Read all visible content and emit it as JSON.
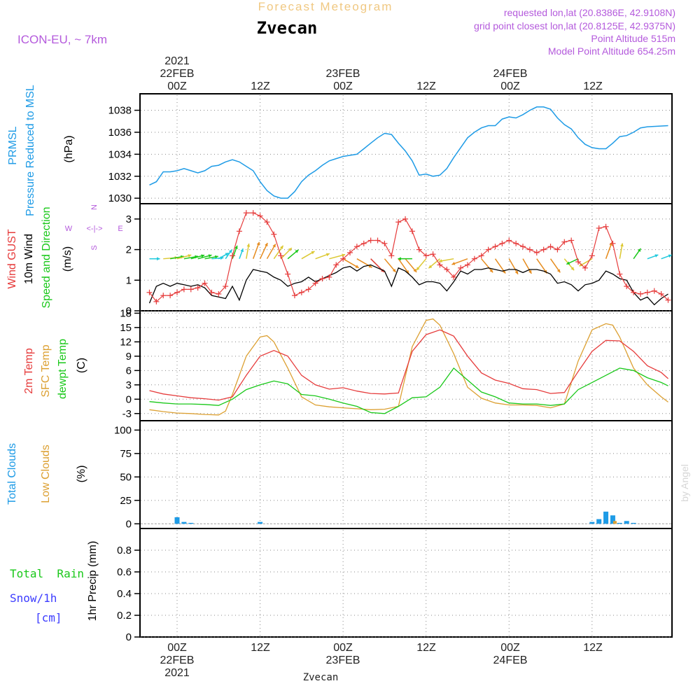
{
  "header": {
    "product": "Forecast Meteogram",
    "station": "Zvecan",
    "model": "ICON-EU, ~ 7km",
    "requested": "requested lon,lat (20.8386E, 42.9108N)",
    "gridpoint": "grid point closest lon,lat (20.8125E, 42.9375N)",
    "point_altitude": "Point Altitude 515m",
    "model_altitude": "Model Point Altitude 654.25m",
    "credit": "by Angel",
    "footer_station": "Zvecan"
  },
  "colors": {
    "pressure": "#1e9be6",
    "gust": "#e63c3c",
    "wind": "#000000",
    "t2m": "#e63c3c",
    "sfc": "#dca032",
    "dewpt": "#19c819",
    "total_clouds": "#1e9be6",
    "low_clouds": "#dca032",
    "rain": "#19c819",
    "snow": "#3c3cff",
    "label_purple": "#b45adc",
    "title_orange": "#f0c882"
  },
  "time_axis": {
    "top_year": "2021",
    "top_dates": [
      "22FEB",
      "23FEB",
      "24FEB"
    ],
    "ticks": [
      "00Z",
      "12Z",
      "00Z",
      "12Z",
      "00Z",
      "12Z"
    ],
    "bottom_dates": [
      "22FEB",
      "23FEB",
      "24FEB"
    ],
    "bottom_year": "2021"
  },
  "panel_labels": {
    "pressure": [
      "PRMSL",
      "Pressure Reduced to MSL"
    ],
    "pressure_unit": "(hPa)",
    "wind_gust": "Wind GUST",
    "wind_10m": "10m Wind",
    "wind_dir": "Speed and Direction",
    "wind_unit": "(m/s)",
    "compass_n": "N",
    "compass_s": "S",
    "compass_e": "E",
    "compass_w": "W",
    "temp_2m": "2m Temp",
    "temp_sfc": "SFC Temp",
    "temp_dew": "dewpt Temp",
    "temp_unit": "(C)",
    "cloud_total": "Total Clouds",
    "cloud_low": "Low Clouds",
    "cloud_unit": "(%)",
    "precip_rain": "Total  Rain",
    "precip_snow": "Snow/1h",
    "precip_snow_unit": "[cm]",
    "precip_label": "1hr Precip (mm)"
  },
  "chart_data": [
    {
      "name": "pressure",
      "type": "line",
      "x_unit": "hours from 22FEB 00Z",
      "ylim": [
        1029.5,
        1039.5
      ],
      "yticks": [
        1030,
        1032,
        1034,
        1036,
        1038
      ],
      "grid": true,
      "series": [
        {
          "name": "PRMSL",
          "x": [
            -4,
            -3,
            -2,
            -1,
            0,
            1,
            2,
            3,
            4,
            5,
            6,
            7,
            8,
            9,
            10,
            11,
            12,
            13,
            14,
            15,
            16,
            17,
            18,
            19,
            20,
            21,
            22,
            23,
            24,
            25,
            26,
            27,
            28,
            29,
            30,
            31,
            32,
            33,
            34,
            35,
            36,
            37,
            38,
            39,
            40,
            41,
            42,
            43,
            44,
            45,
            46,
            47,
            48,
            49,
            50,
            51,
            52,
            53,
            54,
            55,
            56,
            57,
            58,
            59,
            60,
            61,
            62,
            63,
            64,
            65,
            66,
            67,
            68,
            71
          ],
          "y": [
            1031.2,
            1031.5,
            1032.4,
            1032.4,
            1032.5,
            1032.7,
            1032.5,
            1032.3,
            1032.5,
            1032.9,
            1033.0,
            1033.3,
            1033.5,
            1033.3,
            1032.9,
            1032.5,
            1031.5,
            1030.7,
            1030.2,
            1030.0,
            1030.0,
            1030.6,
            1031.5,
            1032.1,
            1032.5,
            1033.0,
            1033.4,
            1033.6,
            1033.8,
            1033.9,
            1034.0,
            1034.5,
            1035.0,
            1035.5,
            1035.9,
            1035.8,
            1035.0,
            1034.3,
            1033.4,
            1032.1,
            1032.2,
            1032.0,
            1032.1,
            1032.7,
            1033.7,
            1034.6,
            1035.5,
            1036.0,
            1036.4,
            1036.6,
            1036.6,
            1037.2,
            1037.4,
            1037.3,
            1037.6,
            1038.0,
            1038.3,
            1038.3,
            1038.1,
            1037.3,
            1036.7,
            1036.3,
            1035.5,
            1034.9,
            1034.6,
            1034.5,
            1034.5,
            1035.0,
            1035.6,
            1035.7,
            1036.0,
            1036.4,
            1036.5,
            1036.6
          ]
        }
      ]
    },
    {
      "name": "wind",
      "type": "line",
      "x_unit": "hours from 22FEB 00Z",
      "ylim": [
        0,
        3.5
      ],
      "yticks": [
        0,
        1,
        2,
        3
      ],
      "grid": true,
      "series": [
        {
          "name": "Wind GUST",
          "x": [
            -4,
            -3,
            -2,
            -1,
            0,
            1,
            2,
            3,
            4,
            5,
            6,
            7,
            8,
            9,
            10,
            11,
            12,
            13,
            14,
            15,
            16,
            17,
            18,
            19,
            20,
            21,
            22,
            23,
            24,
            25,
            26,
            27,
            28,
            29,
            30,
            31,
            32,
            33,
            34,
            35,
            36,
            37,
            38,
            39,
            40,
            41,
            42,
            43,
            44,
            45,
            46,
            47,
            48,
            49,
            50,
            51,
            52,
            53,
            54,
            55,
            56,
            57,
            58,
            59,
            60,
            61,
            62,
            63,
            64,
            65,
            66,
            67,
            68,
            69,
            70,
            71
          ],
          "y": [
            0.6,
            0.3,
            0.5,
            0.5,
            0.6,
            0.7,
            0.7,
            0.75,
            0.9,
            0.6,
            0.55,
            0.8,
            1.8,
            2.6,
            3.2,
            3.2,
            3.1,
            2.9,
            2.5,
            1.8,
            1.2,
            0.5,
            0.6,
            0.7,
            0.9,
            1.05,
            1.1,
            1.5,
            1.7,
            1.9,
            2.1,
            2.2,
            2.3,
            2.3,
            2.2,
            1.8,
            2.9,
            3.0,
            2.6,
            2.0,
            1.8,
            1.85,
            1.5,
            1.35,
            1.1,
            1.4,
            1.5,
            1.7,
            1.8,
            2.0,
            2.1,
            2.2,
            2.3,
            2.2,
            2.1,
            2.0,
            1.9,
            2.0,
            2.1,
            2.0,
            2.25,
            2.3,
            1.6,
            1.4,
            1.8,
            2.7,
            2.75,
            2.2,
            1.2,
            0.8,
            0.6,
            0.55,
            0.6,
            0.65,
            0.55,
            0.35
          ]
        },
        {
          "name": "10m Wind",
          "x": [
            -4,
            -3,
            -2,
            -1,
            0,
            1,
            2,
            3,
            4,
            5,
            6,
            7,
            8,
            9,
            10,
            11,
            12,
            13,
            14,
            15,
            16,
            17,
            18,
            19,
            20,
            21,
            22,
            23,
            24,
            25,
            26,
            27,
            28,
            29,
            30,
            31,
            32,
            33,
            34,
            35,
            36,
            37,
            38,
            39,
            40,
            41,
            42,
            43,
            44,
            45,
            46,
            47,
            48,
            49,
            50,
            51,
            52,
            53,
            54,
            55,
            56,
            57,
            58,
            59,
            60,
            61,
            62,
            63,
            64,
            65,
            66,
            67,
            68,
            69,
            70,
            71
          ],
          "y": [
            0.25,
            0.8,
            0.9,
            0.8,
            0.9,
            0.85,
            0.8,
            0.85,
            0.75,
            0.5,
            0.45,
            0.4,
            0.8,
            0.35,
            1.0,
            1.35,
            1.3,
            1.25,
            1.1,
            1.0,
            0.8,
            0.9,
            0.95,
            1.1,
            0.95,
            1.05,
            1.15,
            1.25,
            1.4,
            1.45,
            1.3,
            1.45,
            1.5,
            1.4,
            1.3,
            0.8,
            1.4,
            1.3,
            1.1,
            0.85,
            0.95,
            0.95,
            0.9,
            0.65,
            0.95,
            1.3,
            1.2,
            1.35,
            1.35,
            1.4,
            1.35,
            1.3,
            1.35,
            1.35,
            1.25,
            1.35,
            1.35,
            1.3,
            1.2,
            0.9,
            0.95,
            0.85,
            0.65,
            0.85,
            0.9,
            1.0,
            1.3,
            1.2,
            1.05,
            1.0,
            0.6,
            0.35,
            0.45,
            0.2,
            0.4,
            0.55
          ]
        }
      ],
      "wind_arrows": {
        "y_level": 1.7,
        "note": "direction in degrees (meteorological, from), speed m/s",
        "x": [
          -4,
          -2,
          -1,
          0,
          1,
          2,
          3,
          4,
          5,
          6,
          7,
          8,
          9,
          10,
          11,
          12,
          13,
          14,
          15,
          16,
          18,
          20,
          22,
          24,
          26,
          28,
          30,
          32,
          33,
          34,
          36,
          38,
          40,
          42,
          44,
          46,
          48,
          50,
          52,
          54,
          56,
          58,
          60,
          62,
          64,
          66,
          68,
          70
        ],
        "dir": [
          270,
          265,
          260,
          255,
          260,
          255,
          255,
          260,
          265,
          240,
          215,
          200,
          200,
          190,
          200,
          205,
          210,
          215,
          225,
          230,
          240,
          250,
          255,
          300,
          300,
          315,
          320,
          325,
          320,
          90,
          40,
          50,
          80,
          70,
          320,
          325,
          330,
          330,
          325,
          325,
          320,
          65,
          60,
          200,
          190,
          215,
          250,
          250
        ],
        "speed": [
          0.3,
          0.9,
          0.8,
          0.9,
          0.85,
          0.8,
          0.85,
          0.75,
          0.5,
          0.45,
          0.4,
          0.8,
          0.35,
          1.0,
          1.35,
          1.3,
          1.25,
          1.1,
          1.0,
          0.8,
          0.95,
          0.95,
          1.15,
          1.4,
          1.3,
          1.5,
          1.3,
          1.4,
          1.3,
          0.85,
          0.95,
          0.9,
          0.95,
          1.2,
          1.35,
          1.35,
          1.35,
          1.25,
          1.35,
          1.2,
          0.95,
          0.65,
          0.9,
          1.3,
          1.05,
          0.6,
          0.45,
          0.4
        ]
      }
    },
    {
      "name": "temperature",
      "type": "line",
      "x_unit": "hours from 22FEB 00Z",
      "ylim": [
        -4.5,
        18.5
      ],
      "yticks": [
        -3,
        0,
        3,
        6,
        9,
        12,
        15,
        18
      ],
      "grid": true,
      "series": [
        {
          "name": "2m Temp",
          "x": [
            -4,
            -2,
            0,
            2,
            4,
            6,
            8,
            10,
            12,
            14,
            16,
            18,
            20,
            22,
            24,
            26,
            28,
            30,
            32,
            34,
            36,
            38,
            40,
            42,
            44,
            46,
            48,
            50,
            52,
            54,
            56,
            58,
            60,
            62,
            64,
            66,
            68,
            70,
            71
          ],
          "y": [
            1.8,
            1.1,
            0.7,
            0.3,
            0.1,
            -0.2,
            0.5,
            5.0,
            9.0,
            10.2,
            9.0,
            5.0,
            3.0,
            2.1,
            2.4,
            1.7,
            1.2,
            1.1,
            1.3,
            10.0,
            13.5,
            14.5,
            13.2,
            9.0,
            5.5,
            4.0,
            3.3,
            2.2,
            2.0,
            1.2,
            1.4,
            5.8,
            10.0,
            12.3,
            12.2,
            10.0,
            7.0,
            5.6,
            4.3
          ]
        },
        {
          "name": "SFC Temp",
          "x": [
            -4,
            -2,
            0,
            2,
            4,
            6,
            7,
            8,
            10,
            12,
            13,
            14,
            16,
            18,
            20,
            22,
            24,
            26,
            28,
            30,
            32,
            34,
            36,
            37,
            38,
            40,
            42,
            44,
            46,
            48,
            50,
            52,
            54,
            56,
            58,
            60,
            62,
            63,
            64,
            66,
            68,
            70,
            71
          ],
          "y": [
            -2.2,
            -2.6,
            -2.9,
            -3.0,
            -3.2,
            -3.3,
            -2.5,
            1.0,
            9.0,
            13.0,
            13.3,
            12.0,
            6.5,
            0.5,
            -1.2,
            -1.6,
            -1.8,
            -2.0,
            -2.2,
            -2.1,
            -1.5,
            11.0,
            16.5,
            16.8,
            15.5,
            9.5,
            2.5,
            0.2,
            -0.8,
            -1.2,
            -1.2,
            -1.3,
            -1.8,
            -1.0,
            8.0,
            14.5,
            15.8,
            15.5,
            13.0,
            6.5,
            3.0,
            0.5,
            -0.6
          ]
        },
        {
          "name": "dewpt Temp",
          "x": [
            -4,
            -2,
            0,
            2,
            4,
            6,
            8,
            10,
            12,
            14,
            16,
            18,
            20,
            22,
            24,
            26,
            28,
            30,
            32,
            34,
            36,
            38,
            40,
            42,
            44,
            46,
            48,
            50,
            52,
            54,
            56,
            58,
            60,
            62,
            64,
            66,
            68,
            70,
            71
          ],
          "y": [
            -0.5,
            -0.8,
            -1.0,
            -1.0,
            -1.1,
            -1.3,
            0.0,
            2.0,
            3.0,
            3.8,
            3.2,
            1.0,
            0.7,
            0.0,
            -0.8,
            -1.5,
            -2.8,
            -3.0,
            -1.5,
            0.3,
            0.5,
            2.5,
            6.5,
            4.0,
            1.5,
            0.5,
            -0.8,
            -1.0,
            -1.0,
            -1.3,
            -1.0,
            2.0,
            3.5,
            5.0,
            6.5,
            6.0,
            4.5,
            3.5,
            2.8
          ]
        }
      ]
    },
    {
      "name": "clouds",
      "type": "bar",
      "x_unit": "hours from 22FEB 00Z",
      "ylim": [
        -5,
        110
      ],
      "yticks": [
        0,
        25,
        50,
        75,
        100
      ],
      "grid": true,
      "series": [
        {
          "name": "Total Clouds",
          "x": [
            0,
            1,
            2,
            12,
            60,
            61,
            62,
            63,
            64,
            65,
            66
          ],
          "y": [
            7,
            2,
            1,
            2,
            2,
            5,
            13,
            9,
            1,
            3,
            1
          ]
        },
        {
          "name": "Low Clouds",
          "x": [
            63
          ],
          "y": [
            3
          ]
        }
      ]
    },
    {
      "name": "precipitation",
      "type": "bar",
      "x_unit": "hours from 22FEB 00Z",
      "ylim": [
        0,
        1.0
      ],
      "yticks": [
        0,
        0.2,
        0.4,
        0.6,
        0.8
      ],
      "grid": true,
      "series": [
        {
          "name": "Total Rain",
          "x": [],
          "y": []
        },
        {
          "name": "Snow/1h",
          "x": [],
          "y": []
        }
      ]
    }
  ]
}
